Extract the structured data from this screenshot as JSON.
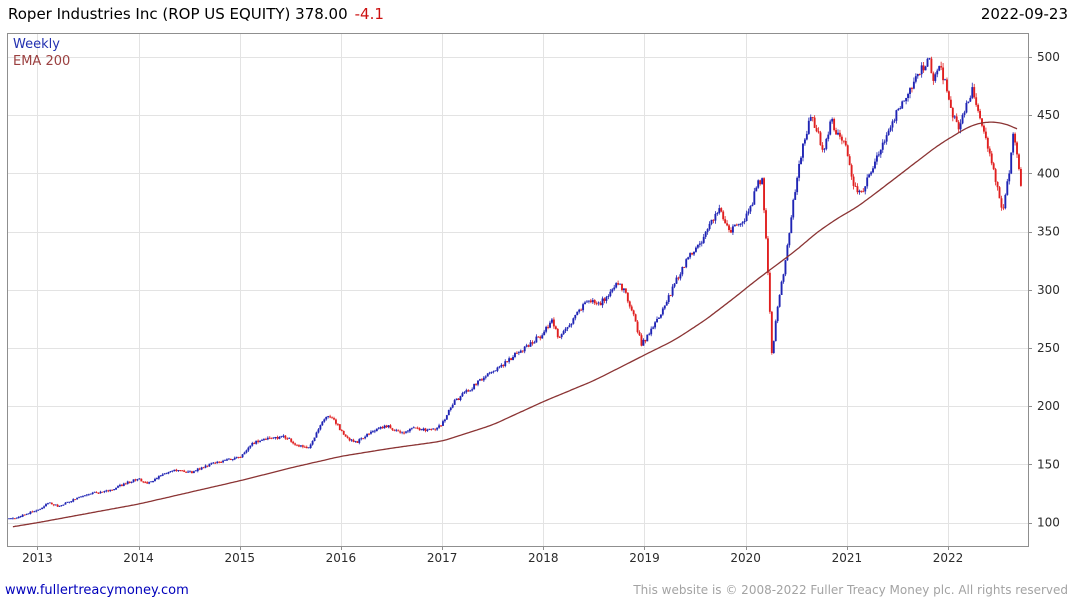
{
  "header": {
    "title": "Roper Industries Inc (ROP US EQUITY) 378.00",
    "change": "-4.1",
    "date": "2022-09-23"
  },
  "legend": {
    "frequency": "Weekly",
    "overlay": "EMA 200"
  },
  "footer": {
    "site_link": "www.fullertreacymoney.com",
    "copyright": "This website is © 2008-2022 Fuller Treacy Money plc. All rights reserved"
  },
  "colors": {
    "title": "#000000",
    "change": "#cc1111",
    "date": "#000000",
    "up_candle": "#1f24b4",
    "down_candle": "#e01f1f",
    "ema_line": "#8b3434",
    "legend_weekly": "#2230b0",
    "legend_ema": "#9b4040",
    "grid": "#e3e3e3",
    "axis_border": "#8f8f8f",
    "tick_label": "#2b2b2b",
    "link": "#0000bb",
    "copyright": "#a3a3a3"
  },
  "chart_data": {
    "type": "candlestick",
    "title": "Roper Industries Inc (ROP US EQUITY)",
    "frequency": "Weekly",
    "overlay": "EMA 200",
    "last_price": 378.0,
    "change": -4.1,
    "as_of": "2022-09-23",
    "y_axis_side": "right",
    "gridlines": true,
    "legend_position": "top-left",
    "x_ticks": [
      2013,
      2014,
      2015,
      2016,
      2017,
      2018,
      2019,
      2020,
      2021,
      2022
    ],
    "y_ticks": [
      100,
      150,
      200,
      250,
      300,
      350,
      400,
      450,
      500
    ],
    "x_domain": [
      2012.7,
      2022.79
    ],
    "y_domain": [
      80,
      520.5
    ],
    "data_start": 2012.72,
    "data_end": 2022.73,
    "price_anchors": [
      [
        2012.72,
        103
      ],
      [
        2012.85,
        106
      ],
      [
        2013.0,
        111
      ],
      [
        2013.12,
        117
      ],
      [
        2013.22,
        114
      ],
      [
        2013.38,
        121
      ],
      [
        2013.55,
        125
      ],
      [
        2013.7,
        127
      ],
      [
        2013.85,
        133
      ],
      [
        2014.0,
        138
      ],
      [
        2014.08,
        133
      ],
      [
        2014.22,
        141
      ],
      [
        2014.38,
        145
      ],
      [
        2014.52,
        143
      ],
      [
        2014.68,
        149
      ],
      [
        2014.85,
        153
      ],
      [
        2015.0,
        156
      ],
      [
        2015.12,
        168
      ],
      [
        2015.28,
        172
      ],
      [
        2015.42,
        174
      ],
      [
        2015.55,
        168
      ],
      [
        2015.68,
        163
      ],
      [
        2015.78,
        181
      ],
      [
        2015.87,
        193
      ],
      [
        2015.95,
        186
      ],
      [
        2016.05,
        173
      ],
      [
        2016.15,
        169
      ],
      [
        2016.3,
        179
      ],
      [
        2016.45,
        183
      ],
      [
        2016.6,
        178
      ],
      [
        2016.75,
        181
      ],
      [
        2016.9,
        179
      ],
      [
        2017.0,
        185
      ],
      [
        2017.12,
        204
      ],
      [
        2017.28,
        215
      ],
      [
        2017.45,
        228
      ],
      [
        2017.6,
        236
      ],
      [
        2017.75,
        246
      ],
      [
        2017.9,
        256
      ],
      [
        2018.0,
        262
      ],
      [
        2018.08,
        274
      ],
      [
        2018.16,
        258
      ],
      [
        2018.26,
        270
      ],
      [
        2018.36,
        283
      ],
      [
        2018.46,
        292
      ],
      [
        2018.56,
        288
      ],
      [
        2018.66,
        298
      ],
      [
        2018.73,
        306
      ],
      [
        2018.8,
        299
      ],
      [
        2018.88,
        281
      ],
      [
        2018.97,
        253
      ],
      [
        2019.06,
        264
      ],
      [
        2019.15,
        277
      ],
      [
        2019.25,
        295
      ],
      [
        2019.35,
        315
      ],
      [
        2019.45,
        330
      ],
      [
        2019.55,
        340
      ],
      [
        2019.65,
        358
      ],
      [
        2019.74,
        368
      ],
      [
        2019.84,
        351
      ],
      [
        2019.94,
        356
      ],
      [
        2020.04,
        368
      ],
      [
        2020.11,
        389
      ],
      [
        2020.16,
        396
      ],
      [
        2020.21,
        335
      ],
      [
        2020.26,
        244
      ],
      [
        2020.31,
        283
      ],
      [
        2020.39,
        323
      ],
      [
        2020.48,
        382
      ],
      [
        2020.56,
        422
      ],
      [
        2020.64,
        449
      ],
      [
        2020.71,
        438
      ],
      [
        2020.77,
        416
      ],
      [
        2020.84,
        447
      ],
      [
        2020.91,
        433
      ],
      [
        2021.0,
        421
      ],
      [
        2021.07,
        389
      ],
      [
        2021.14,
        383
      ],
      [
        2021.24,
        403
      ],
      [
        2021.34,
        423
      ],
      [
        2021.44,
        442
      ],
      [
        2021.54,
        461
      ],
      [
        2021.64,
        476
      ],
      [
        2021.74,
        489
      ],
      [
        2021.81,
        497
      ],
      [
        2021.86,
        479
      ],
      [
        2021.91,
        494
      ],
      [
        2021.97,
        477
      ],
      [
        2022.04,
        453
      ],
      [
        2022.11,
        438
      ],
      [
        2022.18,
        457
      ],
      [
        2022.24,
        472
      ],
      [
        2022.31,
        453
      ],
      [
        2022.39,
        425
      ],
      [
        2022.47,
        393
      ],
      [
        2022.54,
        369
      ],
      [
        2022.6,
        399
      ],
      [
        2022.65,
        438
      ],
      [
        2022.69,
        411
      ],
      [
        2022.73,
        378
      ]
    ],
    "ema_anchors": [
      [
        2012.72,
        96
      ],
      [
        2013.0,
        100
      ],
      [
        2013.5,
        108
      ],
      [
        2014.0,
        116
      ],
      [
        2014.5,
        126
      ],
      [
        2015.0,
        136
      ],
      [
        2015.5,
        147
      ],
      [
        2016.0,
        157
      ],
      [
        2016.5,
        164
      ],
      [
        2017.0,
        170
      ],
      [
        2017.5,
        184
      ],
      [
        2018.0,
        204
      ],
      [
        2018.5,
        222
      ],
      [
        2019.0,
        244
      ],
      [
        2019.3,
        257
      ],
      [
        2019.6,
        274
      ],
      [
        2019.9,
        294
      ],
      [
        2020.1,
        308
      ],
      [
        2020.3,
        321
      ],
      [
        2020.5,
        334
      ],
      [
        2020.7,
        349
      ],
      [
        2020.9,
        361
      ],
      [
        2021.1,
        371
      ],
      [
        2021.3,
        384
      ],
      [
        2021.6,
        404
      ],
      [
        2021.9,
        424
      ],
      [
        2022.05,
        432
      ],
      [
        2022.2,
        440
      ],
      [
        2022.35,
        444
      ],
      [
        2022.5,
        444
      ],
      [
        2022.65,
        440
      ],
      [
        2022.79,
        432
      ]
    ]
  }
}
